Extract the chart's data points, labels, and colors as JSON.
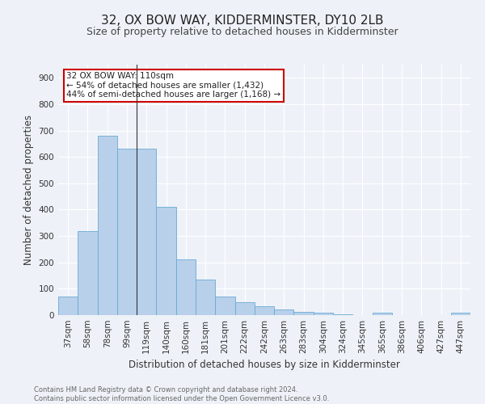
{
  "title": "32, OX BOW WAY, KIDDERMINSTER, DY10 2LB",
  "subtitle": "Size of property relative to detached houses in Kidderminster",
  "xlabel": "Distribution of detached houses by size in Kidderminster",
  "ylabel": "Number of detached properties",
  "categories": [
    "37sqm",
    "58sqm",
    "78sqm",
    "99sqm",
    "119sqm",
    "140sqm",
    "160sqm",
    "181sqm",
    "201sqm",
    "222sqm",
    "242sqm",
    "263sqm",
    "283sqm",
    "304sqm",
    "324sqm",
    "345sqm",
    "365sqm",
    "386sqm",
    "406sqm",
    "427sqm",
    "447sqm"
  ],
  "values": [
    70,
    320,
    680,
    630,
    630,
    410,
    210,
    135,
    70,
    48,
    33,
    22,
    13,
    8,
    2,
    0,
    8,
    0,
    0,
    0,
    8
  ],
  "bar_color": "#b8d0ea",
  "bar_edge_color": "#6aaad4",
  "annotation_text": "32 OX BOW WAY: 110sqm\n← 54% of detached houses are smaller (1,432)\n44% of semi-detached houses are larger (1,168) →",
  "annotation_box_color": "#ffffff",
  "annotation_box_edge_color": "#cc0000",
  "footer_text": "Contains HM Land Registry data © Crown copyright and database right 2024.\nContains public sector information licensed under the Open Government Licence v3.0.",
  "background_color": "#eef2f8",
  "plot_background_color": "#eef2f8",
  "ylim": [
    0,
    950
  ],
  "yticks": [
    0,
    100,
    200,
    300,
    400,
    500,
    600,
    700,
    800,
    900
  ],
  "grid_color": "#ffffff",
  "title_fontsize": 11,
  "subtitle_fontsize": 9,
  "tick_label_fontsize": 7.5,
  "axis_label_fontsize": 8.5,
  "footer_fontsize": 6
}
